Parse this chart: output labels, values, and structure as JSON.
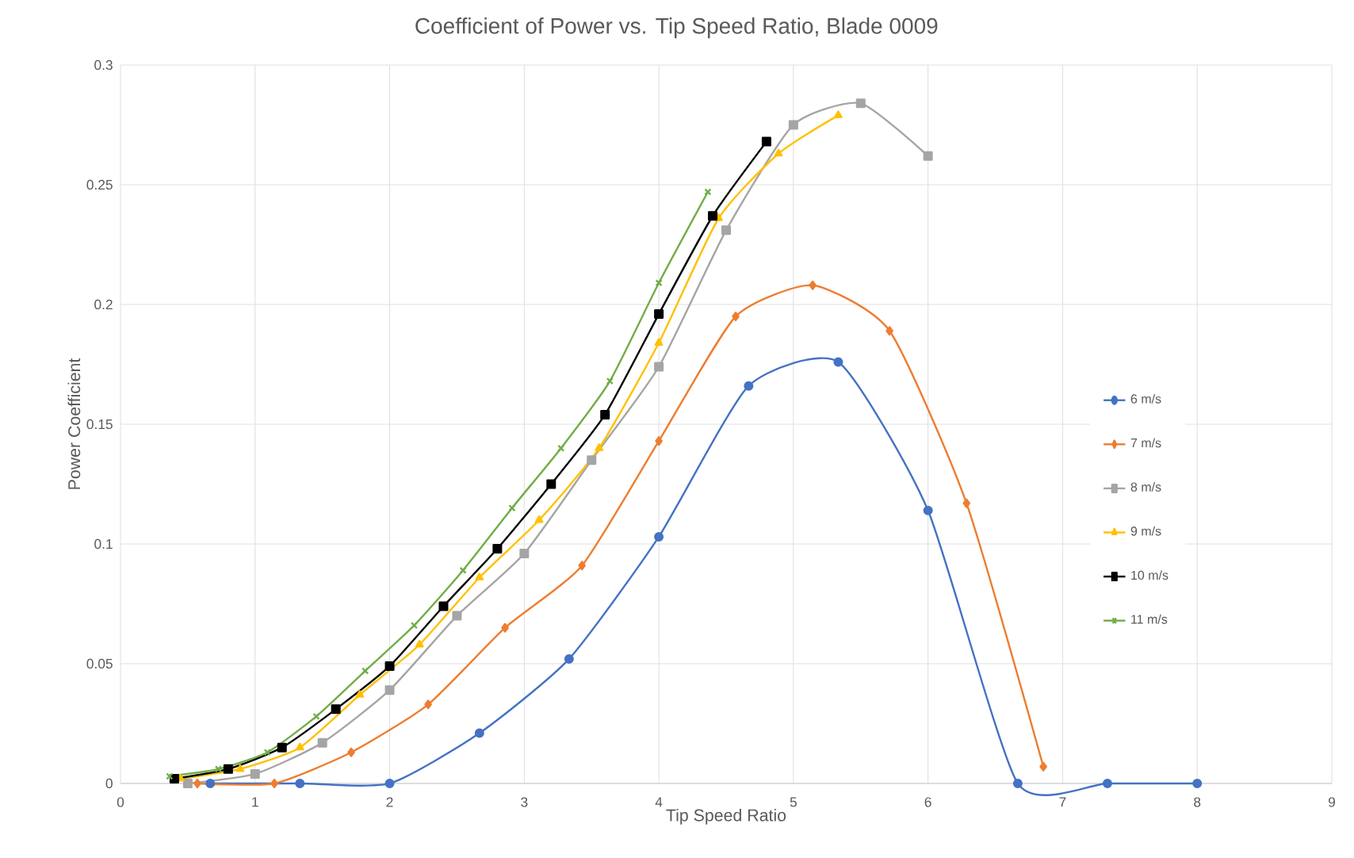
{
  "chart_data": {
    "type": "line",
    "title": "Coefficient of Power vs. Tip Speed Ratio, Blade 0009",
    "xlabel": "Tip Speed Ratio",
    "ylabel": "Power Coefficient",
    "xlim": [
      0,
      9
    ],
    "ylim": [
      0,
      0.3
    ],
    "xticks": [
      0,
      1,
      2,
      3,
      4,
      5,
      6,
      7,
      8,
      9
    ],
    "yticks": [
      0,
      0.05,
      0.1,
      0.15,
      0.2,
      0.25,
      0.3
    ],
    "grid": true,
    "legend": "right",
    "series": [
      {
        "name": "6 m/s",
        "color": "#4472c4",
        "marker": "circle",
        "x": [
          0.667,
          1.333,
          2,
          2.667,
          3.333,
          4,
          4.667,
          5.333,
          6,
          6.667,
          7.333,
          8
        ],
        "values": [
          0,
          0,
          0,
          0.021,
          0.052,
          0.103,
          0.166,
          0.176,
          0.114,
          0,
          0,
          0
        ]
      },
      {
        "name": "7 m/s",
        "color": "#ed7d31",
        "marker": "diamond",
        "x": [
          0.571,
          1.143,
          1.714,
          2.286,
          2.857,
          3.429,
          4,
          4.571,
          5.143,
          5.714,
          6.286,
          6.857
        ],
        "values": [
          0,
          0,
          0.013,
          0.033,
          0.065,
          0.091,
          0.143,
          0.195,
          0.208,
          0.189,
          0.117,
          0.007
        ]
      },
      {
        "name": "8 m/s",
        "color": "#a5a5a5",
        "marker": "square",
        "x": [
          0.5,
          1,
          1.5,
          2,
          2.5,
          3,
          3.5,
          4,
          4.5,
          5,
          5.5,
          6
        ],
        "values": [
          0,
          0.004,
          0.017,
          0.039,
          0.07,
          0.096,
          0.135,
          0.174,
          0.231,
          0.275,
          0.284,
          0.262
        ]
      },
      {
        "name": "9 m/s",
        "color": "#ffc000",
        "marker": "triangle",
        "x": [
          0.444,
          0.889,
          1.333,
          1.778,
          2.222,
          2.667,
          3.111,
          3.556,
          4,
          4.444,
          4.889,
          5.333
        ],
        "values": [
          0.002,
          0.006,
          0.015,
          0.037,
          0.058,
          0.086,
          0.11,
          0.14,
          0.184,
          0.236,
          0.263,
          0.279
        ]
      },
      {
        "name": "10 m/s",
        "color": "#000000",
        "marker": "square",
        "x": [
          0.4,
          0.8,
          1.2,
          1.6,
          2.0,
          2.4,
          2.8,
          3.2,
          3.6,
          4.0,
          4.4,
          4.8
        ],
        "values": [
          0.002,
          0.006,
          0.015,
          0.031,
          0.049,
          0.074,
          0.098,
          0.125,
          0.154,
          0.196,
          0.237,
          0.268
        ]
      },
      {
        "name": "11 m/s",
        "color": "#70ad47",
        "marker": "cross",
        "x": [
          0.364,
          0.727,
          1.091,
          1.455,
          1.818,
          2.182,
          2.545,
          2.909,
          3.273,
          3.636,
          4,
          4.364
        ],
        "values": [
          0.003,
          0.006,
          0.013,
          0.028,
          0.047,
          0.066,
          0.089,
          0.115,
          0.14,
          0.168,
          0.209,
          0.247
        ]
      }
    ]
  }
}
